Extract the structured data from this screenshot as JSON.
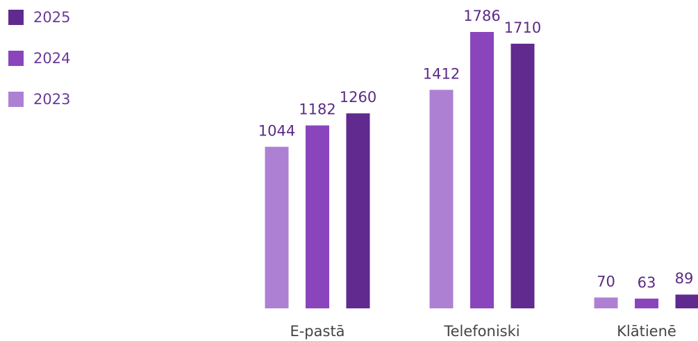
{
  "chart_data": {
    "type": "bar",
    "categories": [
      "E-pastā",
      "Telefoniski",
      "Klātienē"
    ],
    "series": [
      {
        "name": "2023",
        "color": "#ae80d4",
        "values": [
          1044,
          1412,
          70
        ]
      },
      {
        "name": "2024",
        "color": "#8a45bd",
        "values": [
          1182,
          1786,
          63
        ]
      },
      {
        "name": "2025",
        "color": "#612a8f",
        "values": [
          1260,
          1710,
          89
        ]
      }
    ]
  }
}
